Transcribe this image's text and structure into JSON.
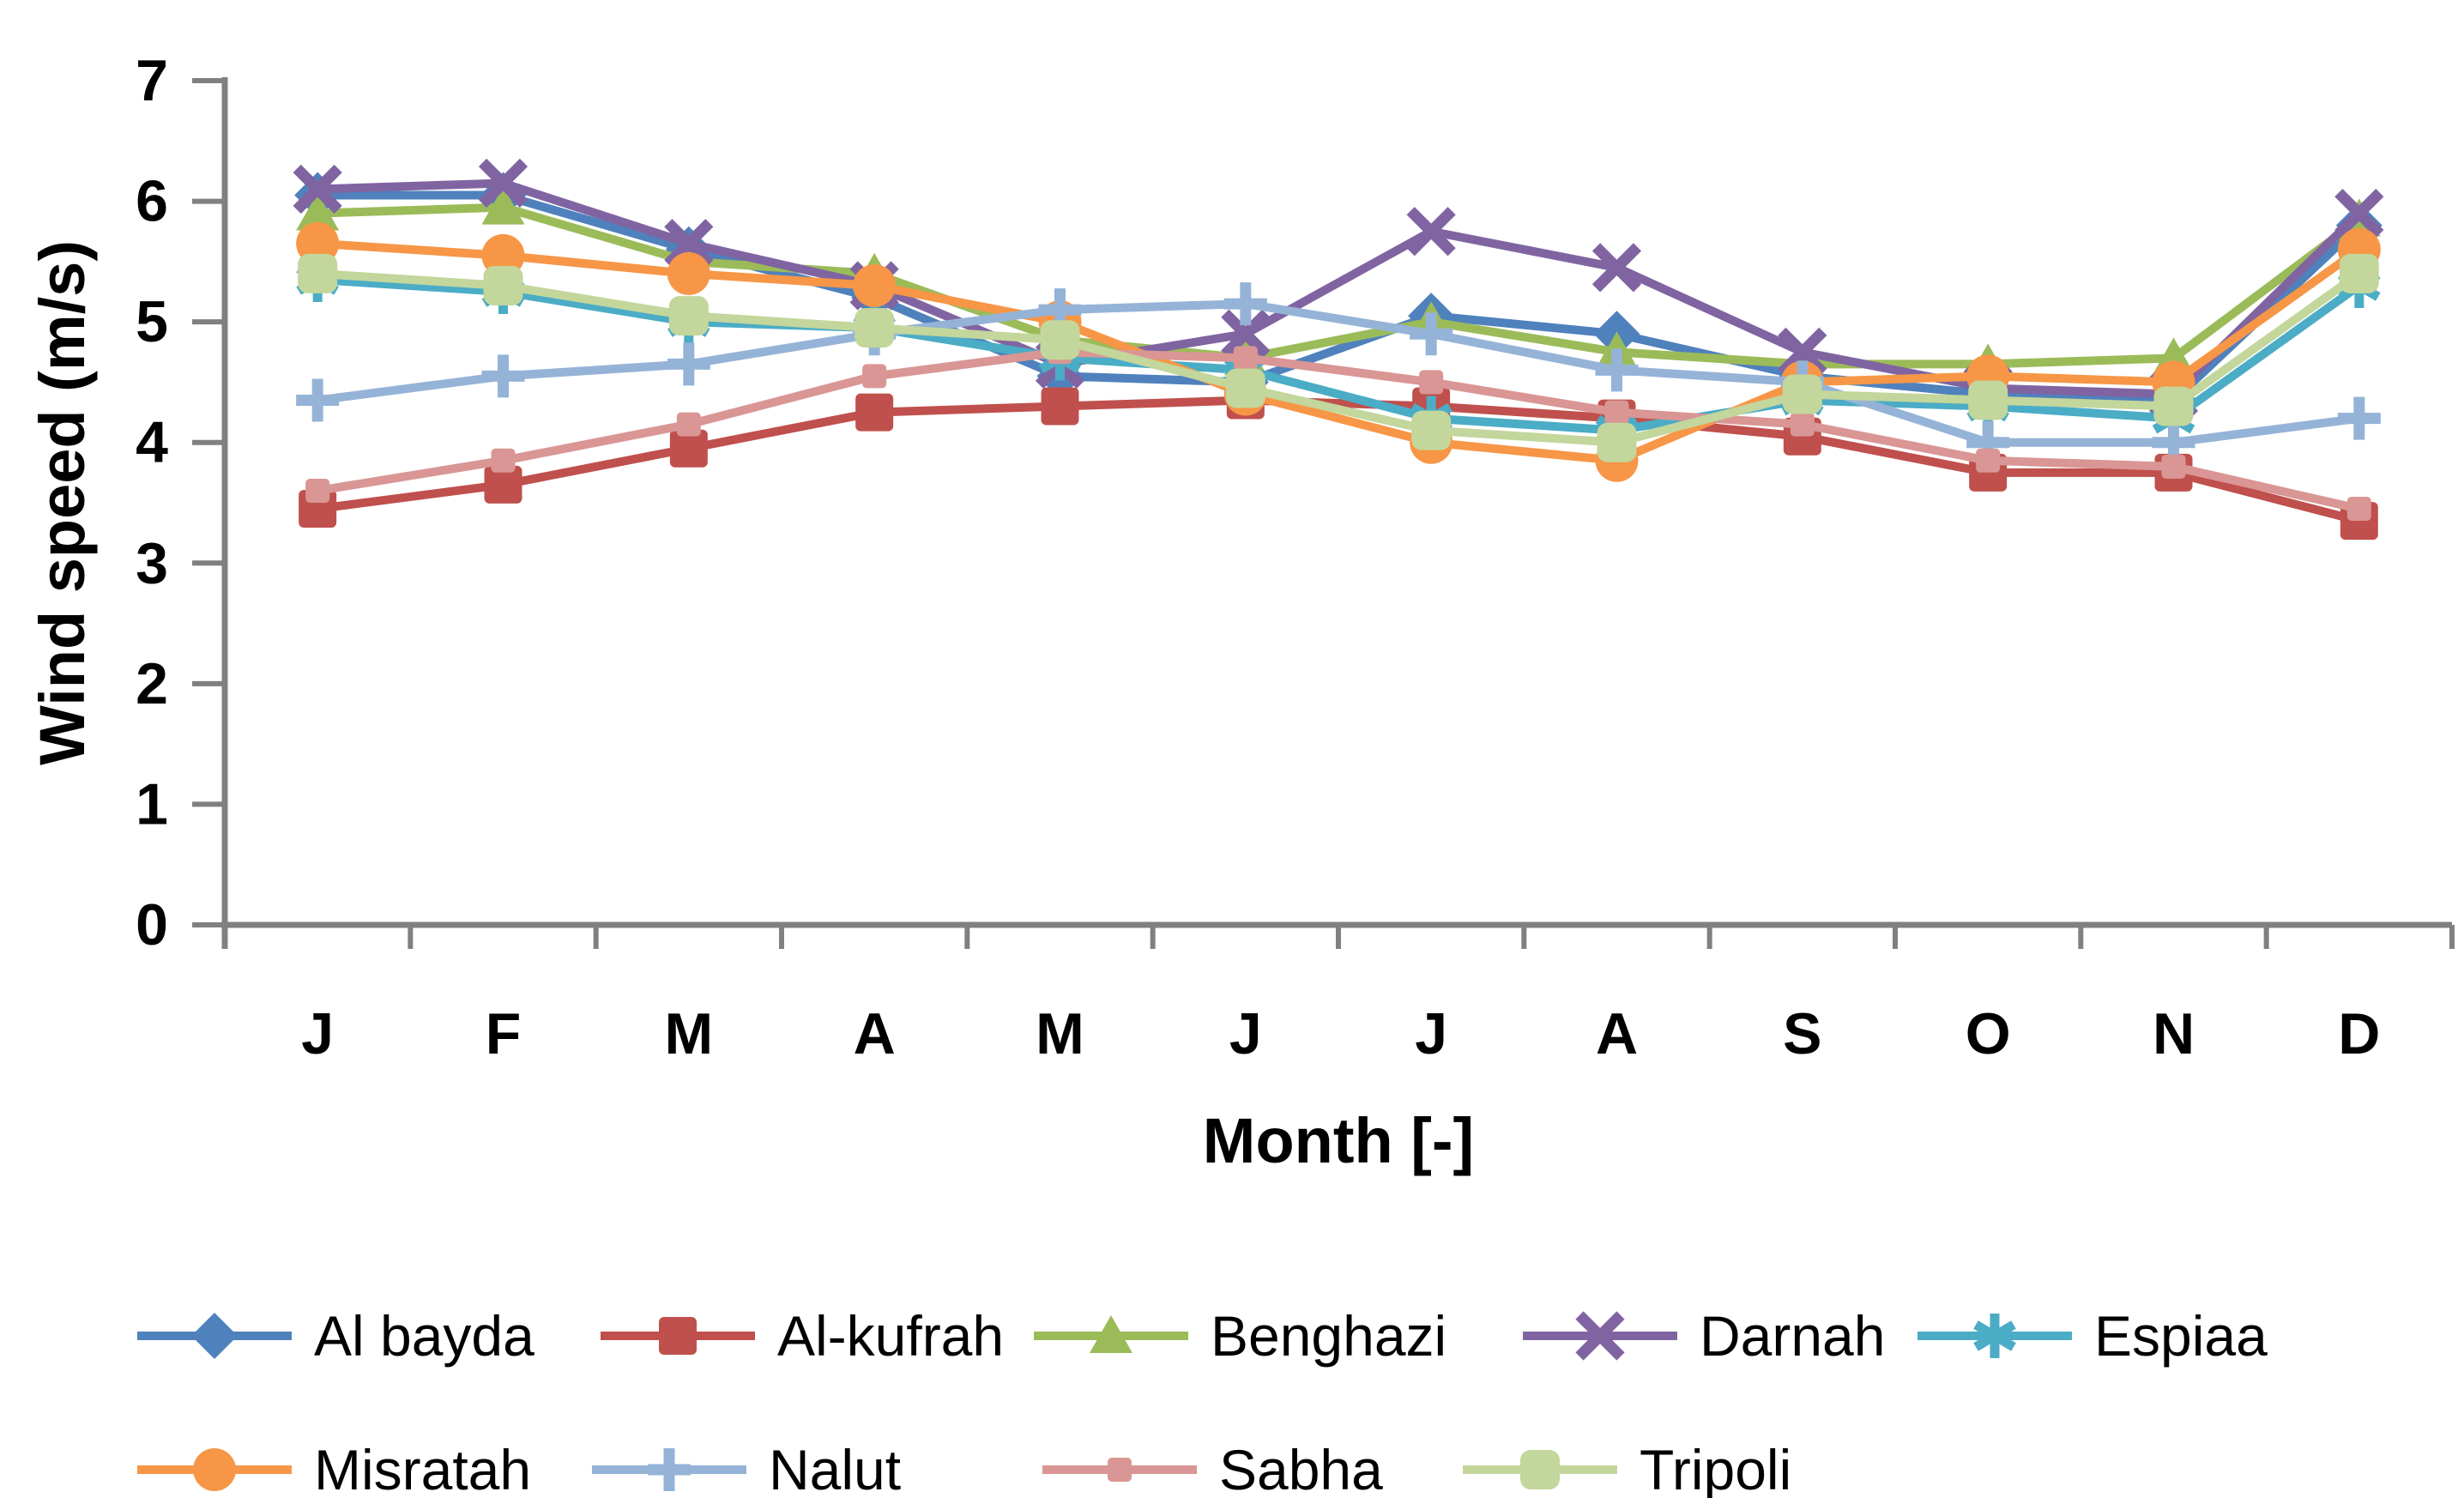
{
  "chart_data": {
    "type": "line",
    "title": "",
    "xlabel": "Month [-]",
    "ylabel": "Wind speed (m/s)",
    "categories": [
      "J",
      "F",
      "M",
      "A",
      "M",
      "J",
      "J",
      "A",
      "S",
      "O",
      "N",
      "D"
    ],
    "ylim": [
      0,
      7
    ],
    "ytick_step": 1,
    "yticks": [
      0,
      1,
      2,
      3,
      4,
      5,
      6,
      7
    ],
    "grid": false,
    "legend_position": "bottom",
    "axis_color": "#808080",
    "background_color": "#ffffff",
    "series": [
      {
        "name": "Al bayda",
        "color": "#4F81BD",
        "marker": "diamond",
        "values": [
          6.05,
          6.05,
          5.6,
          5.2,
          4.55,
          4.5,
          5.05,
          4.9,
          4.55,
          4.4,
          4.35,
          5.8
        ]
      },
      {
        "name": "Al-kufrah",
        "color": "#C0504D",
        "marker": "square",
        "values": [
          3.45,
          3.65,
          3.95,
          4.25,
          4.3,
          4.35,
          4.3,
          4.2,
          4.05,
          3.75,
          3.75,
          3.35
        ]
      },
      {
        "name": "Benghazi",
        "color": "#9BBB59",
        "marker": "triangle",
        "values": [
          5.9,
          5.95,
          5.5,
          5.4,
          4.85,
          4.7,
          5.0,
          4.75,
          4.65,
          4.65,
          4.7,
          5.85
        ]
      },
      {
        "name": "Darnah",
        "color": "#8064A2",
        "marker": "x",
        "values": [
          6.1,
          6.15,
          5.65,
          5.3,
          4.65,
          4.9,
          5.75,
          5.45,
          4.75,
          4.45,
          4.4,
          5.9
        ]
      },
      {
        "name": "Espiaa",
        "color": "#4BACC6",
        "marker": "asterisk",
        "values": [
          5.35,
          5.25,
          5.0,
          4.95,
          4.7,
          4.6,
          4.2,
          4.1,
          4.35,
          4.3,
          4.2,
          5.3
        ]
      },
      {
        "name": "Misratah",
        "color": "#F79646",
        "marker": "circle",
        "values": [
          5.65,
          5.55,
          5.4,
          5.3,
          5.0,
          4.4,
          4.0,
          3.85,
          4.5,
          4.55,
          4.5,
          5.6
        ]
      },
      {
        "name": "Nalut",
        "color": "#95B3D7",
        "marker": "plus",
        "values": [
          4.35,
          4.55,
          4.65,
          4.9,
          5.1,
          5.15,
          4.9,
          4.6,
          4.5,
          4.0,
          4.0,
          4.2
        ]
      },
      {
        "name": "Sabha",
        "color": "#D99694",
        "marker": "square-small",
        "values": [
          3.6,
          3.85,
          4.15,
          4.55,
          4.75,
          4.7,
          4.5,
          4.25,
          4.15,
          3.85,
          3.8,
          3.45
        ]
      },
      {
        "name": "Tripoli",
        "color": "#C3D69B",
        "marker": "square-rounded",
        "values": [
          5.4,
          5.3,
          5.05,
          4.95,
          4.85,
          4.45,
          4.1,
          4.0,
          4.4,
          4.35,
          4.3,
          5.4
        ]
      }
    ]
  }
}
